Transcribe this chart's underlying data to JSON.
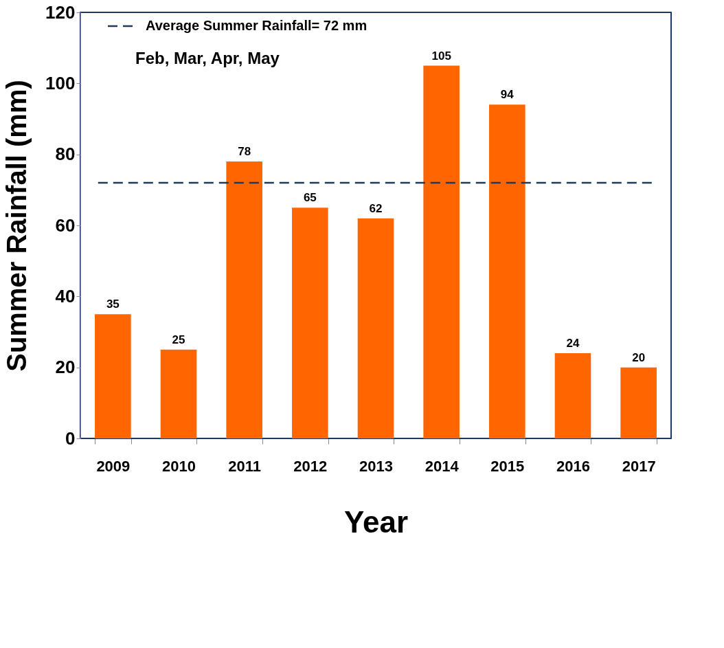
{
  "chart_data": {
    "type": "bar",
    "xlabel": "Year",
    "ylabel": "Summer Rainfall (mm)",
    "categories": [
      "2009",
      "2010",
      "2011",
      "2012",
      "2013",
      "2014",
      "2015",
      "2016",
      "2017"
    ],
    "values": [
      35,
      25,
      78,
      65,
      62,
      105,
      94,
      24,
      20
    ],
    "color": "#ff6600",
    "ylim": [
      0,
      120
    ],
    "yticks": [
      0,
      20,
      40,
      60,
      80,
      100,
      120
    ],
    "grid": false,
    "data_labels": true,
    "ref_lines": [
      {
        "axis": "y",
        "value": 72,
        "label": "Average Summer Rainfall= 72 mm",
        "color": "#1f3a5a",
        "line_style": "dashed"
      }
    ],
    "annotations": [
      "Feb, Mar, Apr, May"
    ]
  }
}
